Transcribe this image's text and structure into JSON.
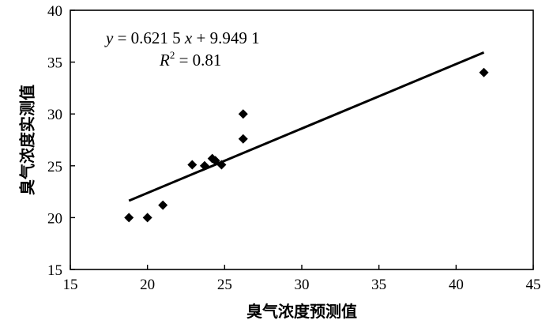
{
  "chart_data": {
    "type": "scatter",
    "xlabel": "臭气浓度预测值",
    "ylabel": "臭气浓度实测值",
    "xlim": [
      15,
      45
    ],
    "ylim": [
      15,
      40
    ],
    "xticks": [
      15,
      20,
      25,
      30,
      35,
      40,
      45
    ],
    "yticks": [
      15,
      20,
      25,
      30,
      35,
      40
    ],
    "grid": false,
    "marker": "diamond",
    "points": [
      {
        "x": 18.8,
        "y": 20.0
      },
      {
        "x": 20.0,
        "y": 20.0
      },
      {
        "x": 21.0,
        "y": 21.2
      },
      {
        "x": 22.9,
        "y": 25.1
      },
      {
        "x": 23.7,
        "y": 25.0
      },
      {
        "x": 24.2,
        "y": 25.7
      },
      {
        "x": 24.4,
        "y": 25.5
      },
      {
        "x": 24.8,
        "y": 25.1
      },
      {
        "x": 26.2,
        "y": 27.6
      },
      {
        "x": 26.2,
        "y": 30.0
      },
      {
        "x": 41.8,
        "y": 34.0
      }
    ],
    "fit_line": {
      "slope": 0.6215,
      "intercept": 9.9491,
      "x_range": [
        18.8,
        41.8
      ]
    },
    "annotation": {
      "equation_y": "y",
      "equation_rest": " = 0.621 5 ",
      "equation_x": "x",
      "equation_tail": " + 9.949 1",
      "r2_base": "R",
      "r2_exp": "2",
      "r2_value": " = 0.81"
    }
  }
}
